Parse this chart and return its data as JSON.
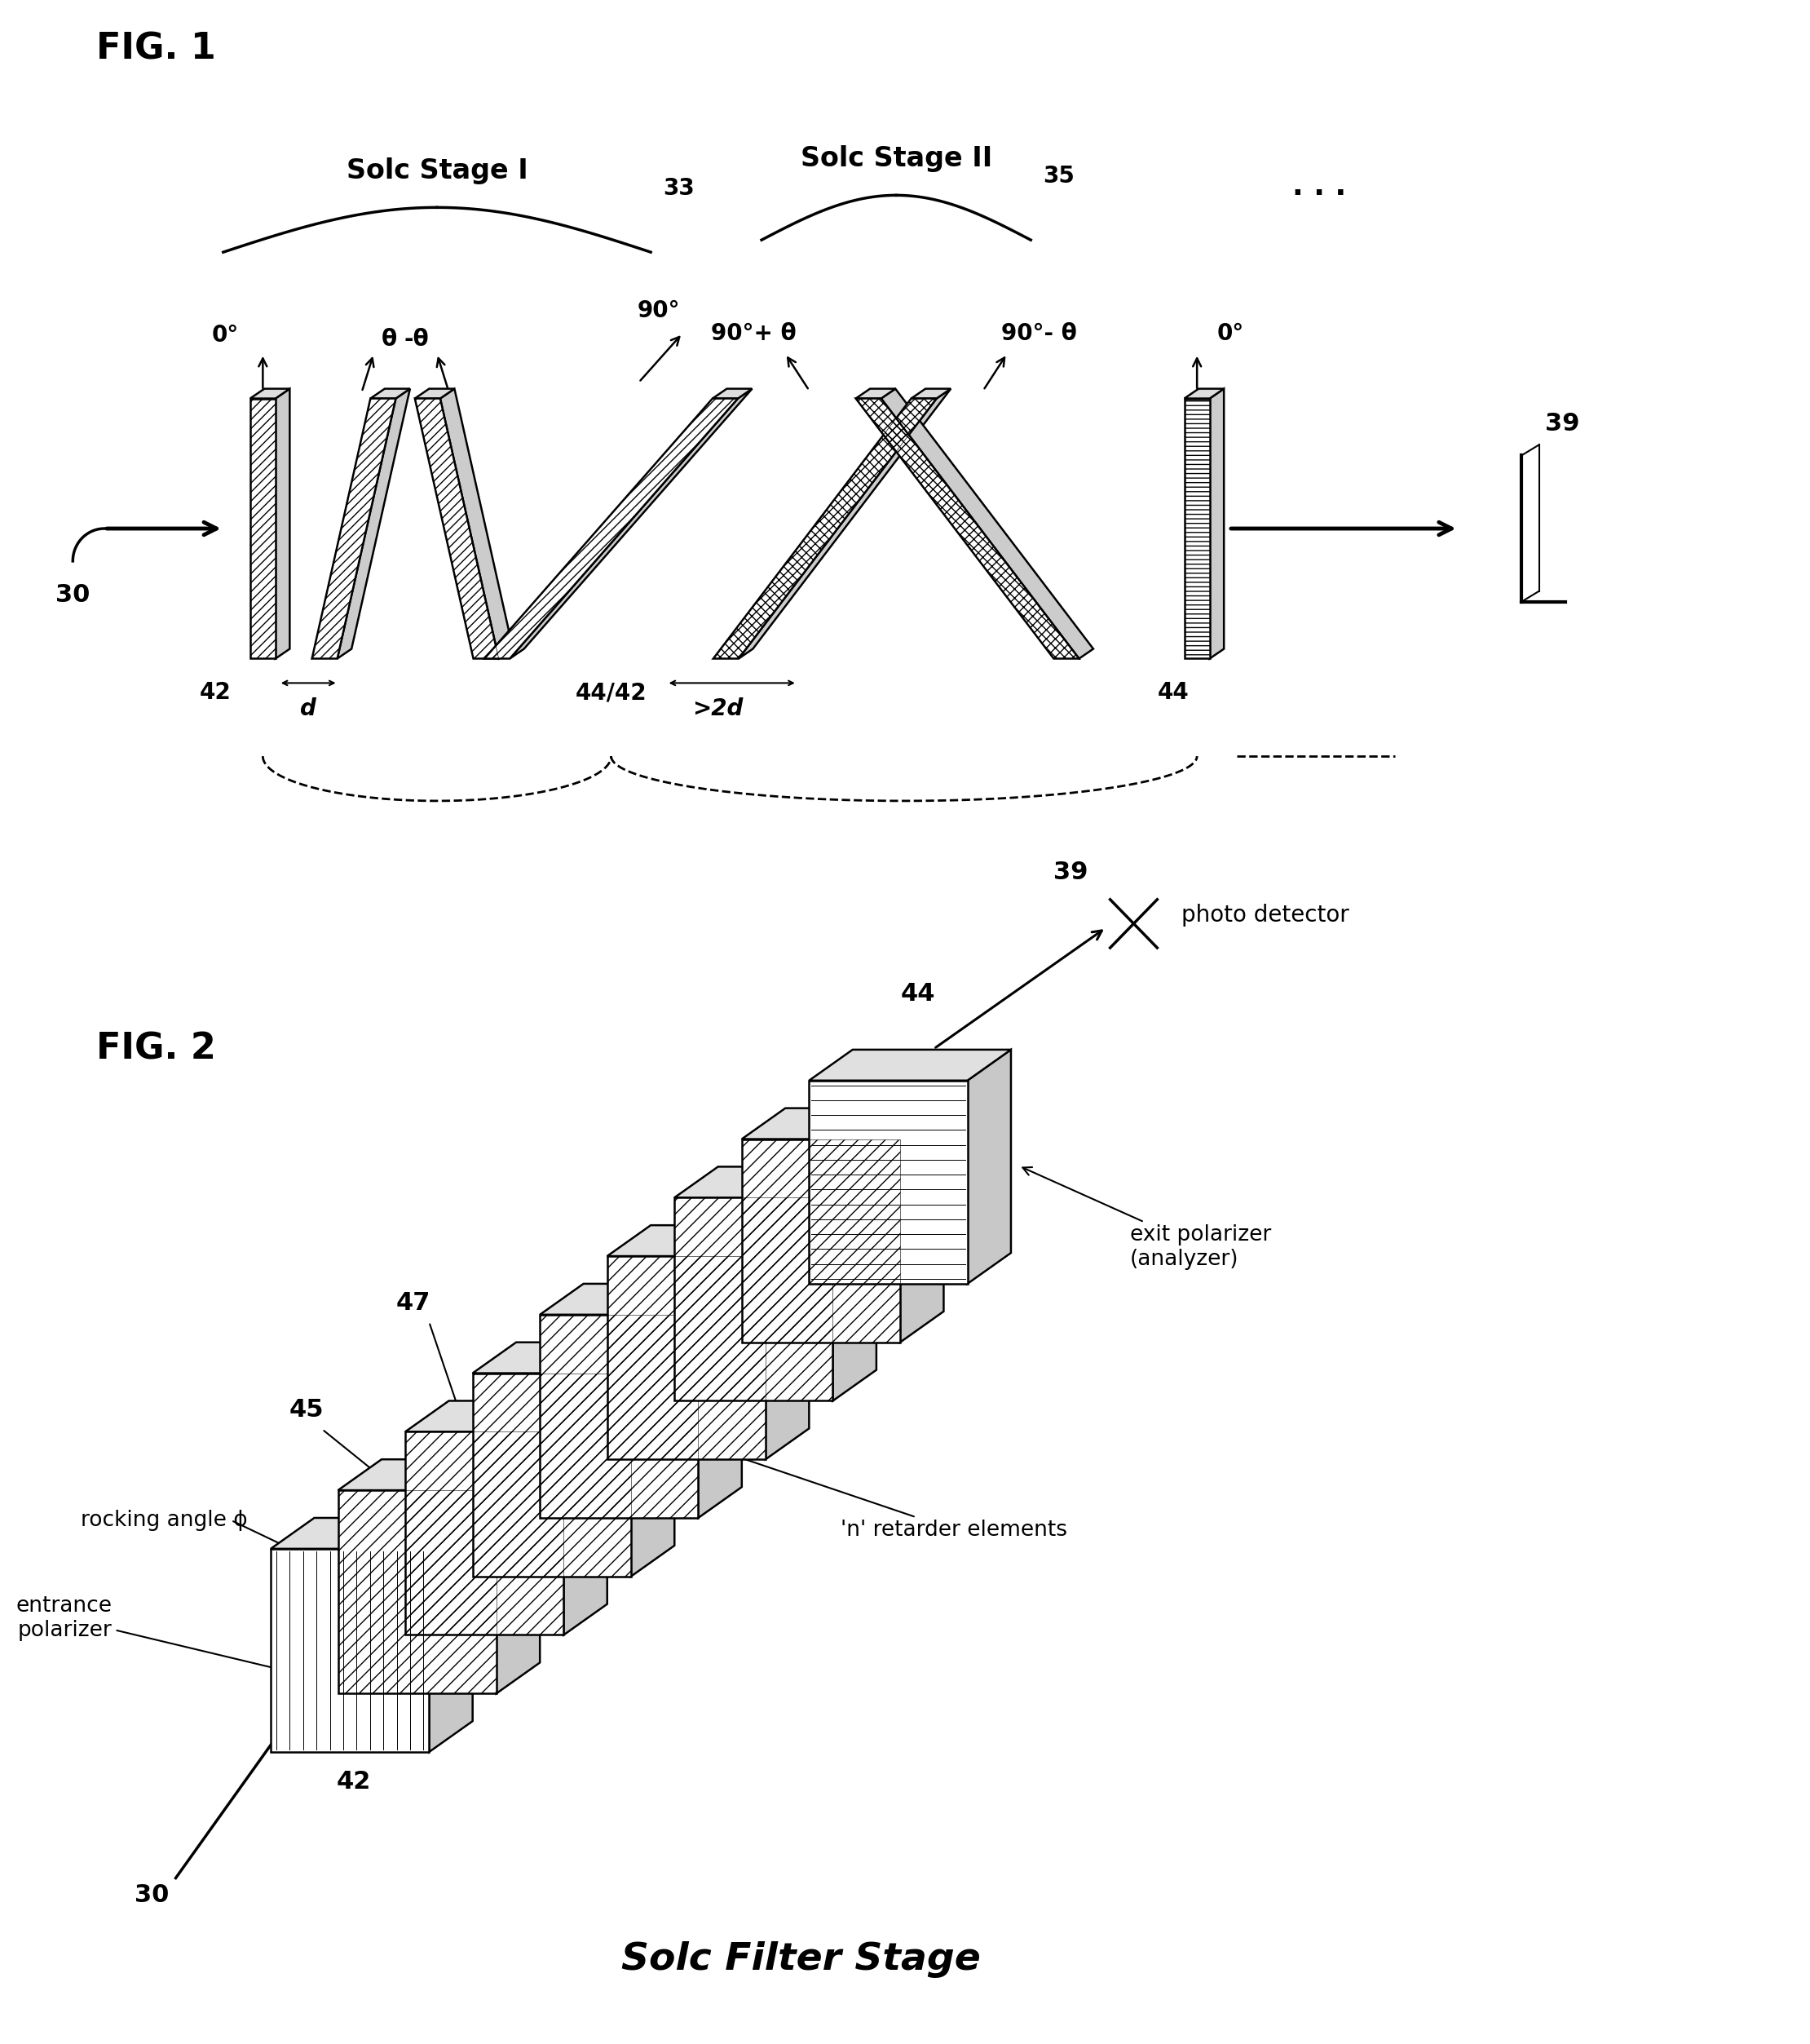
{
  "fig_width": 22.2,
  "fig_height": 25.06,
  "bg_color": "#ffffff",
  "fig1_label": "FIG. 1",
  "fig2_label": "FIG. 2",
  "stage1_label": "Solc Stage I",
  "stage2_label": "Solc Stage II",
  "stage1_num": "33",
  "stage2_num": "35",
  "stage_filter_label": "Solc Filter Stage",
  "angle_labels": [
    "0°",
    "θ",
    "-θ",
    "90°",
    "90°+ θ",
    "90°- θ",
    "0°"
  ],
  "bottom_labels": [
    "42",
    "d",
    "44/42",
    ">2d",
    "44"
  ],
  "dots": ". . .",
  "fig2_label_rocking": "rocking angle ϕ",
  "fig2_label_entrance": "entrance\npolarizer",
  "fig2_label_retarder": "'n' retarder elements",
  "fig2_label_exit": "exit polarizer\n(analyzer)",
  "fig2_label_photo": "photo detector",
  "ref_30": "30",
  "ref_39": "39",
  "ref_42": "42",
  "ref_44": "44",
  "ref_45": "45",
  "ref_47": "47"
}
